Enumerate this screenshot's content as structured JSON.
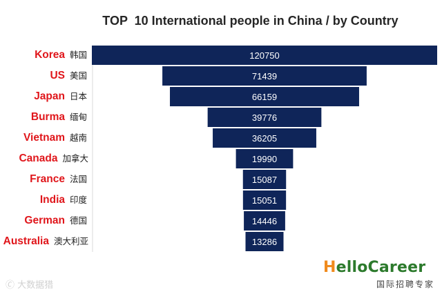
{
  "chart_data": {
    "type": "bar",
    "title": "TOP  10 International people in China / by Country",
    "categories": [
      "Korea",
      "US",
      "Japan",
      "Burma",
      "Vietnam",
      "Canada",
      "France",
      "India",
      "German",
      "Australia"
    ],
    "categories_zh": [
      "韩国",
      "美国",
      "日本",
      "缅甸",
      "越南",
      "加拿大",
      "法国",
      "印度",
      "德国",
      "澳大利亚"
    ],
    "values": [
      120750,
      71439,
      66159,
      39776,
      36205,
      19990,
      15087,
      15051,
      14446,
      13286
    ],
    "style": "funnel, centered horizontal bars",
    "bar_color": "#0f2559",
    "label_color": "#e0161b"
  },
  "watermark": "🄫 大数据猎",
  "logo": {
    "brand": "HelloCareer",
    "brand_first": "H",
    "brand_rest": "elloCareer",
    "tagline": "国际招聘专家"
  }
}
